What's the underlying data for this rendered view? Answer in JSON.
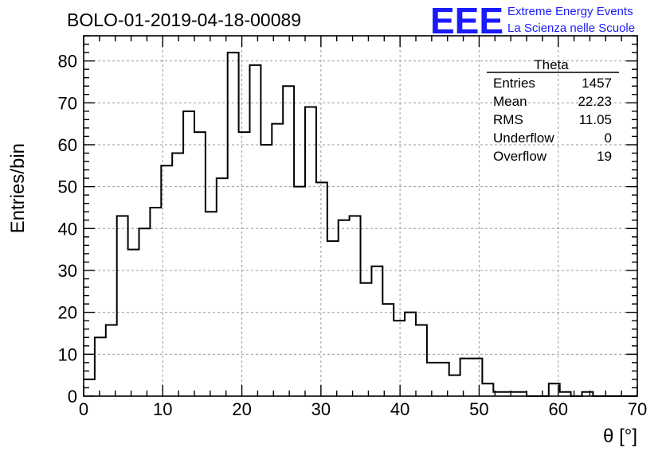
{
  "chart_data": {
    "type": "bar",
    "title": "BOLO-01-2019-04-18-00089",
    "xlabel": "θ [°]",
    "ylabel": "Entries/bin",
    "xlim": [
      0,
      70
    ],
    "ylim": [
      0,
      86
    ],
    "grid": true,
    "bin_width": 1.4,
    "x_ticks": [
      "0",
      "10",
      "20",
      "30",
      "40",
      "50",
      "60",
      "70"
    ],
    "y_ticks": [
      "0",
      "10",
      "20",
      "30",
      "40",
      "50",
      "60",
      "70",
      "80"
    ],
    "values": [
      4,
      14,
      17,
      43,
      35,
      40,
      45,
      55,
      58,
      68,
      63,
      44,
      52,
      82,
      63,
      79,
      60,
      65,
      74,
      50,
      69,
      51,
      37,
      42,
      43,
      27,
      31,
      22,
      18,
      20,
      17,
      8,
      8,
      5,
      9,
      9,
      3,
      1,
      1,
      1,
      0,
      0,
      3,
      1,
      0,
      1,
      0,
      0,
      0,
      0
    ],
    "stats": {
      "name": "Theta",
      "rows": [
        {
          "label": "Entries",
          "value": "1457"
        },
        {
          "label": "Mean",
          "value": "22.23"
        },
        {
          "label": "RMS",
          "value": "11.05"
        },
        {
          "label": "Underflow",
          "value": "0"
        },
        {
          "label": "Overflow",
          "value": "19"
        }
      ]
    }
  },
  "logo": {
    "text": "EEE",
    "line1": "Extreme Energy Events",
    "line2": "La Scienza nelle Scuole",
    "color": "#1a1aff"
  }
}
